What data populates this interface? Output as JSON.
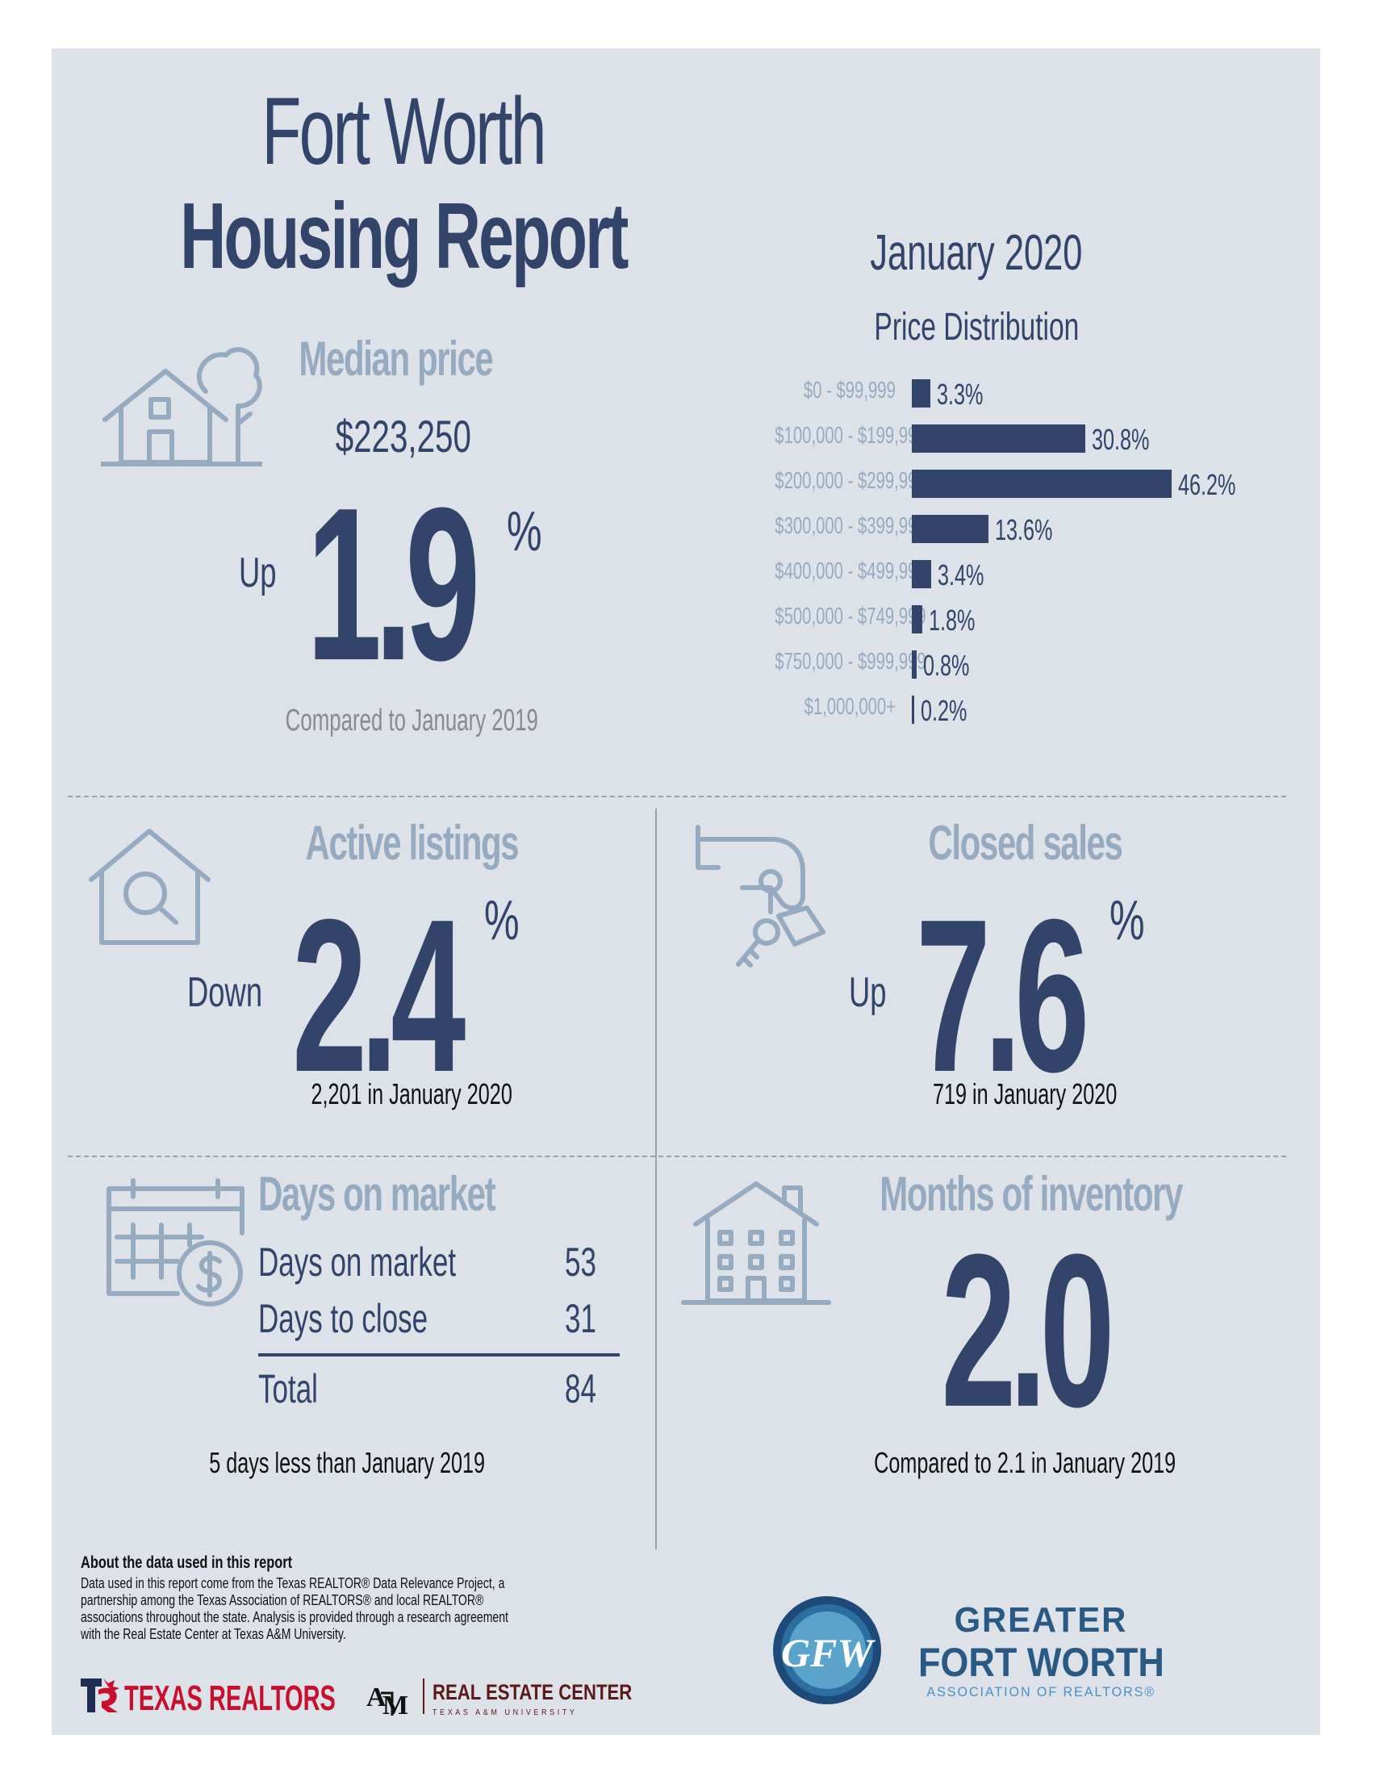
{
  "header": {
    "title_line1": "Fort Worth",
    "title_line2": "Housing Report",
    "period": "January 2020"
  },
  "median": {
    "title": "Median price",
    "price": "$223,250",
    "direction": "Up",
    "value": "1.9",
    "pct": "%",
    "compare": "Compared to January 2019"
  },
  "distribution": {
    "title": "Price Distribution",
    "rows": [
      {
        "label": "$0 - $99,999",
        "value": "3.3%",
        "pct": 3.3
      },
      {
        "label": "$100,000 - $199,999",
        "value": "30.8%",
        "pct": 30.8
      },
      {
        "label": "$200,000 - $299,999",
        "value": "46.2%",
        "pct": 46.2
      },
      {
        "label": "$300,000 - $399,999",
        "value": "13.6%",
        "pct": 13.6
      },
      {
        "label": "$400,000 - $499,999",
        "value": "3.4%",
        "pct": 3.4
      },
      {
        "label": "$500,000 - $749,999",
        "value": "1.8%",
        "pct": 1.8
      },
      {
        "label": "$750,000 - $999,999",
        "value": "0.8%",
        "pct": 0.8
      },
      {
        "label": "$1,000,000+",
        "value": "0.2%",
        "pct": 0.2
      }
    ]
  },
  "chart_data": {
    "type": "bar",
    "title": "Price Distribution",
    "orientation": "horizontal",
    "categories": [
      "$0 - $99,999",
      "$100,000 - $199,999",
      "$200,000 - $299,999",
      "$300,000 - $399,999",
      "$400,000 - $499,999",
      "$500,000 - $749,999",
      "$750,000 - $999,999",
      "$1,000,000+"
    ],
    "values": [
      3.3,
      30.8,
      46.2,
      13.6,
      3.4,
      1.8,
      0.8,
      0.2
    ],
    "unit": "%"
  },
  "active": {
    "title": "Active listings",
    "direction": "Down",
    "value": "2.4",
    "pct": "%",
    "detail": "2,201 in January 2020"
  },
  "closed": {
    "title": "Closed sales",
    "direction": "Up",
    "value": "7.6",
    "pct": "%",
    "detail": "719 in January 2020"
  },
  "dom": {
    "title": "Days on market",
    "rows": [
      {
        "label": "Days on market",
        "value": "53"
      },
      {
        "label": "Days to close",
        "value": "31"
      }
    ],
    "total_label": "Total",
    "total_value": "84",
    "detail": "5 days less than January 2019"
  },
  "inventory": {
    "title": "Months of inventory",
    "value": "2.0",
    "detail": "Compared to 2.1 in January 2019"
  },
  "footer": {
    "about_title": "About the data used in this report",
    "about_lines": [
      "Data used in this report come from the Texas REALTOR® Data Relevance Project, a",
      "partnership among the Texas Association of REALTORS® and local REALTOR®",
      "associations throughout the state. Analysis is provided through a research agreement",
      "with the Real Estate Center at Texas A&M University."
    ],
    "logo_tr": "TEXAS REALTORS",
    "logo_rec": "REAL ESTATE CENTER",
    "logo_rec_sub": "TEXAS A&M UNIVERSITY",
    "logo_gfw_line1": "GREATER",
    "logo_gfw_line2": "FORT WORTH",
    "logo_gfw_line3": "ASSOCIATION OF REALTORS®",
    "logo_gfw_mono": "GFW"
  },
  "colors": {
    "navy": "#324469",
    "light": "#97abc0",
    "panel": "#dde1e8"
  },
  "icons": [
    "house-tree-icon",
    "house-search-icon",
    "hand-key-icon",
    "calendar-dollar-icon",
    "apartment-building-icon"
  ]
}
